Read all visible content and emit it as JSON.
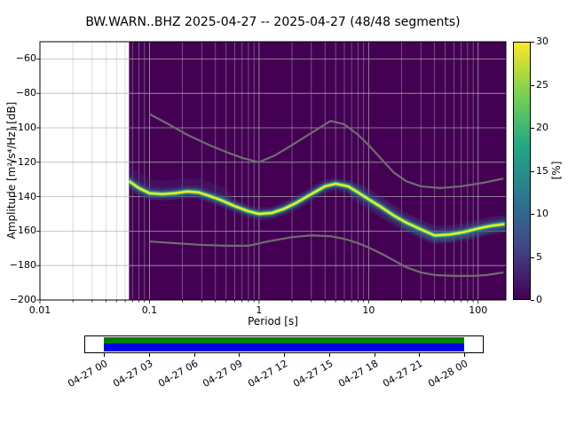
{
  "chart_data": {
    "type": "heatmap",
    "title": "BW.WARN..BHZ   2025-04-27 -- 2025-04-27  (48/48 segments)",
    "xlabel": "Period [s]",
    "ylabel": "Amplitude [m²/s⁴/Hz] [dB]",
    "xscale": "log",
    "xlim": [
      0.01,
      179
    ],
    "ylim": [
      -200,
      -50
    ],
    "xticks": [
      0.01,
      0.1,
      1,
      10,
      100
    ],
    "yticks": [
      -60,
      -80,
      -100,
      -120,
      -140,
      -160,
      -180,
      -200
    ],
    "grid": true,
    "data_period_min": 0.065,
    "colorbar": {
      "label": "[%]",
      "ticks": [
        0,
        5,
        10,
        15,
        20,
        25,
        30
      ],
      "lim": [
        0,
        30
      ],
      "colormap": "viridis",
      "gradient_top_to_bottom": [
        "#fde725",
        "#7ad151",
        "#22a884",
        "#2a788e",
        "#414487",
        "#440154"
      ]
    },
    "psd_mode_curve": {
      "periods_s": [
        0.065,
        0.08,
        0.1,
        0.13,
        0.17,
        0.22,
        0.28,
        0.35,
        0.45,
        0.6,
        0.8,
        1.0,
        1.3,
        1.7,
        2.2,
        3.0,
        4.0,
        5.0,
        6.5,
        8.0,
        10,
        13,
        17,
        22,
        30,
        40,
        55,
        75,
        100,
        130,
        170
      ],
      "amplitude_db": [
        -131,
        -135,
        -138,
        -138.5,
        -138,
        -137,
        -137.5,
        -139.5,
        -142,
        -145.5,
        -148.5,
        -150,
        -149.5,
        -147,
        -143.5,
        -138.5,
        -134,
        -132.5,
        -134,
        -137.5,
        -141.5,
        -146,
        -151,
        -155,
        -159,
        -162.5,
        -162,
        -160.5,
        -158.5,
        -157,
        -156
      ]
    },
    "noise_models": {
      "high_noise_model": {
        "periods_s": [
          0.1,
          0.15,
          0.22,
          0.35,
          0.5,
          0.7,
          1.0,
          1.4,
          2.0,
          3.0,
          4.5,
          6.0,
          8.0,
          10,
          13,
          17,
          22,
          30,
          45,
          70,
          110,
          170
        ],
        "amplitude_db": [
          -92,
          -98,
          -104,
          -110,
          -114,
          -117.5,
          -120,
          -116,
          -110,
          -103,
          -96,
          -98,
          -104,
          -110,
          -118,
          -126,
          -131,
          -134,
          -135,
          -134,
          -132,
          -129.5
        ]
      },
      "low_noise_model": {
        "periods_s": [
          0.1,
          0.17,
          0.3,
          0.5,
          0.8,
          1.2,
          2.0,
          3.0,
          4.5,
          6.0,
          8.0,
          10,
          13,
          17,
          22,
          30,
          40,
          60,
          90,
          120,
          170
        ],
        "amplitude_db": [
          -166,
          -167,
          -168,
          -168.5,
          -168.5,
          -166,
          -163.5,
          -162.5,
          -163,
          -164.5,
          -167,
          -169.5,
          -173,
          -177,
          -181,
          -184,
          -185.5,
          -186,
          -186,
          -185.5,
          -184
        ]
      }
    },
    "colors": {
      "plot_background_no_data": "#ffffff",
      "heatmap_background": "#440154",
      "noise_model_line": "#6e6e6e",
      "grid_line": "#b0b0b0",
      "band_palette": [
        "#46327e",
        "#365c8d",
        "#277f8e",
        "#3e4989",
        "#31688e",
        "#21918c",
        "#35b779",
        "#7ad151",
        "#fde725"
      ]
    },
    "timeline": {
      "tick_labels": [
        "04-27 00",
        "04-27 03",
        "04-27 06",
        "04-27 09",
        "04-27 12",
        "04-27 15",
        "04-27 18",
        "04-27 21",
        "04-28 00"
      ],
      "coverage_full": true,
      "extent_color": "#008000",
      "data_color": "#0000e8"
    }
  }
}
